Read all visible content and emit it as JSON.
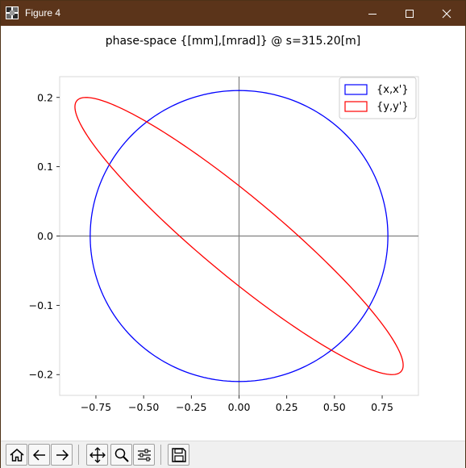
{
  "window": {
    "title": "Figure 4",
    "controls": {
      "minimize": "minimize-icon",
      "maximize": "maximize-icon",
      "close": "close-icon"
    }
  },
  "toolbar": {
    "buttons": [
      "home-icon",
      "back-arrow-icon",
      "forward-arrow-icon",
      "pan-icon",
      "zoom-icon",
      "configure-subplots-icon",
      "save-icon"
    ]
  },
  "chart_data": {
    "type": "line",
    "title": "phase-space {[mm],[mrad]} @ s=315.20[m]",
    "xlabel": "",
    "ylabel": "",
    "xlim": [
      -0.94,
      0.94
    ],
    "ylim": [
      -0.23,
      0.23
    ],
    "x_ticks": [
      -0.75,
      -0.5,
      -0.25,
      0.0,
      0.25,
      0.5,
      0.75
    ],
    "x_tick_labels": [
      "−0.75",
      "−0.50",
      "−0.25",
      "0.00",
      "0.25",
      "0.50",
      "0.75"
    ],
    "y_ticks": [
      -0.2,
      -0.1,
      0.0,
      0.1,
      0.2
    ],
    "y_tick_labels": [
      "−0.2",
      "−0.1",
      "0.0",
      "0.1",
      "0.2"
    ],
    "zero_lines": true,
    "grid": false,
    "legend": {
      "position": "top-right"
    },
    "colors": {
      "x_series": "#0000ff",
      "y_series": "#ff0000",
      "zero_lines": "#808080"
    },
    "series": [
      {
        "name": "{x,x'}",
        "shape": "ellipse",
        "center": [
          0.0,
          0.0
        ],
        "x_amplitude": 0.78,
        "xp_amplitude": 0.21,
        "phase_offset_rad": 0.0
      },
      {
        "name": "{y,y'}",
        "shape": "ellipse",
        "center": [
          0.0,
          0.0
        ],
        "x_amplitude": 0.86,
        "xp_amplitude": 0.2,
        "phase_offset_rad": -1.2
      }
    ]
  }
}
